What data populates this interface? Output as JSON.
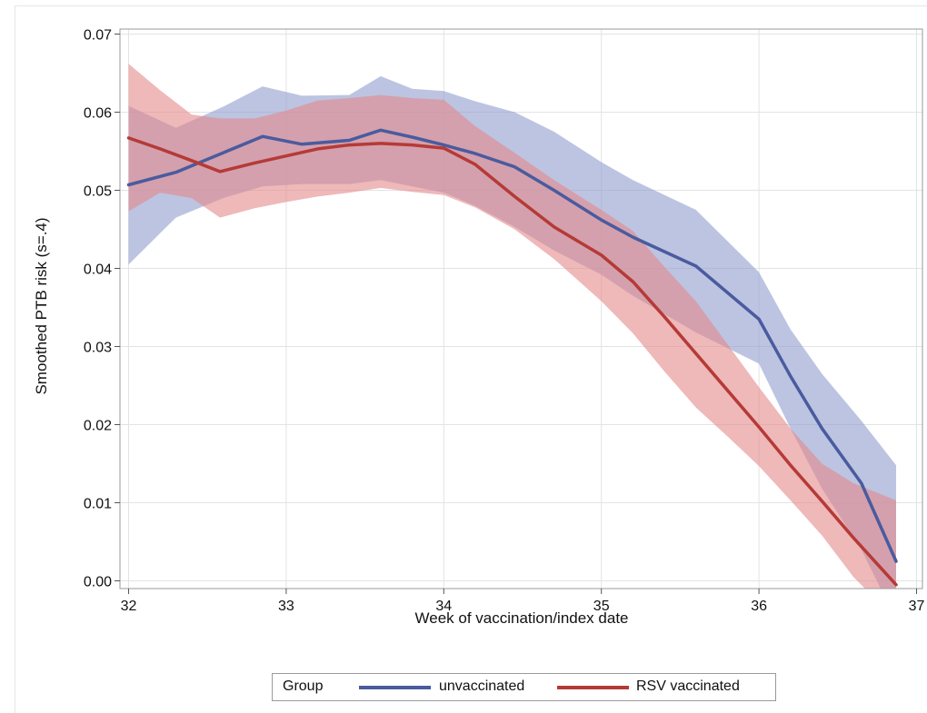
{
  "chart_data": {
    "type": "line",
    "xlabel": "Week of vaccination/index date",
    "ylabel": "Smoothed PTB risk (s=.4)",
    "xlim": [
      32,
      37
    ],
    "ylim": [
      0,
      0.07
    ],
    "x_ticks": [
      "32",
      "33",
      "34",
      "35",
      "36",
      "37"
    ],
    "y_ticks": [
      "0.00",
      "0.01",
      "0.02",
      "0.03",
      "0.04",
      "0.05",
      "0.06",
      "0.07"
    ],
    "grid": true,
    "legend_placement": "bottom",
    "legend_title": "Group",
    "series": [
      {
        "name": "unvaccinated",
        "color": "#4a5b9e",
        "band_color": "#8f9dcf",
        "x": [
          32.0,
          32.3,
          32.6,
          32.85,
          33.1,
          33.4,
          33.6,
          33.8,
          34.0,
          34.2,
          34.45,
          34.7,
          35.0,
          35.2,
          35.6,
          36.0,
          36.2,
          36.4,
          36.65,
          36.87
        ],
        "y": [
          0.0507,
          0.0523,
          0.0548,
          0.0569,
          0.0559,
          0.0564,
          0.0577,
          0.0568,
          0.0558,
          0.0547,
          0.053,
          0.05,
          0.0462,
          0.044,
          0.0403,
          0.0335,
          0.0262,
          0.0195,
          0.0125,
          0.0025
        ],
        "lower": [
          0.0405,
          0.0465,
          0.049,
          0.0505,
          0.0508,
          0.0508,
          0.0513,
          0.0505,
          0.0497,
          0.048,
          0.0453,
          0.0423,
          0.0392,
          0.0365,
          0.0318,
          0.0278,
          0.0195,
          0.0118,
          0.004,
          -0.005
        ],
        "upper": [
          0.0608,
          0.058,
          0.0607,
          0.0633,
          0.0621,
          0.0622,
          0.0646,
          0.063,
          0.0627,
          0.0614,
          0.06,
          0.0575,
          0.0536,
          0.0513,
          0.0475,
          0.0395,
          0.0322,
          0.0265,
          0.0205,
          0.0148
        ]
      },
      {
        "name": "RSV vaccinated",
        "color": "#b53a36",
        "band_color": "#e4898a",
        "x": [
          32.0,
          32.2,
          32.4,
          32.58,
          32.8,
          33.0,
          33.2,
          33.4,
          33.6,
          33.8,
          34.0,
          34.2,
          34.45,
          34.7,
          35.0,
          35.2,
          35.4,
          35.6,
          35.8,
          36.0,
          36.2,
          36.4,
          36.6,
          36.87
        ],
        "y": [
          0.0567,
          0.0553,
          0.0538,
          0.0524,
          0.0535,
          0.0544,
          0.0553,
          0.0558,
          0.056,
          0.0558,
          0.0554,
          0.0533,
          0.0492,
          0.0453,
          0.0417,
          0.0383,
          0.0338,
          0.0291,
          0.0244,
          0.0197,
          0.0148,
          0.0102,
          0.0055,
          -0.0005
        ],
        "lower": [
          0.0473,
          0.0497,
          0.049,
          0.0465,
          0.0477,
          0.0485,
          0.0492,
          0.0497,
          0.0503,
          0.0498,
          0.0494,
          0.0478,
          0.045,
          0.0412,
          0.0358,
          0.0317,
          0.0268,
          0.0222,
          0.0185,
          0.0147,
          0.0103,
          0.0058,
          0.0005,
          -0.005
        ],
        "upper": [
          0.0662,
          0.0628,
          0.0597,
          0.0592,
          0.0592,
          0.0602,
          0.0615,
          0.0618,
          0.0622,
          0.0618,
          0.0616,
          0.0582,
          0.0548,
          0.0513,
          0.0475,
          0.0448,
          0.0402,
          0.0358,
          0.0303,
          0.0248,
          0.0195,
          0.015,
          0.0125,
          0.0103
        ]
      }
    ]
  }
}
